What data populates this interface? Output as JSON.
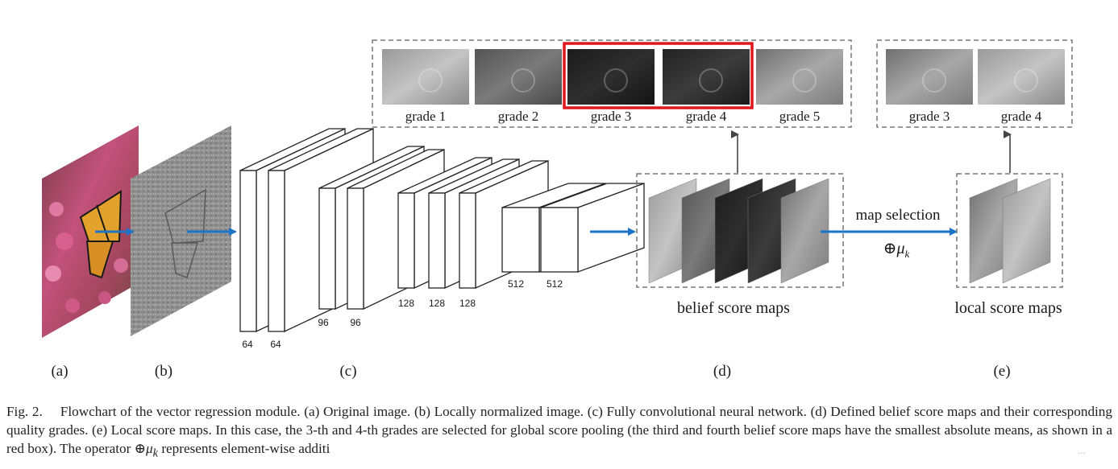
{
  "grades_top": [
    "grade 1",
    "grade 2",
    "grade 3",
    "grade 4",
    "grade 5"
  ],
  "grades_selected": [
    "grade 3",
    "grade 4"
  ],
  "labels": {
    "belief": "belief score maps",
    "local": "local score maps",
    "map_selection": "map selection",
    "operator": "⊕μ",
    "operator_sub": "k"
  },
  "layer_sizes": [
    "64",
    "64",
    "96",
    "96",
    "128",
    "128",
    "128",
    "512",
    "512"
  ],
  "panels": [
    "(a)",
    "(b)",
    "(c)",
    "(d)",
    "(e)"
  ],
  "caption": {
    "fig": "Fig. 2.",
    "text": "Flowchart of the vector regression module. (a) Original image. (b) Locally normalized image. (c) Fully convolutional neural network. (d) Defined belief score maps and their corresponding quality grades. (e) Local score maps. In this case, the 3-th and 4-th grades are selected for global score pooling (the third and fourth belief score maps have the smallest absolute means, as shown in a red box). The operator ",
    "operator": "⊕μ",
    "operator_sub": "k",
    "tail": " represents element-wise additi"
  },
  "watermark": "...",
  "colors": {
    "arrow": "#1d73c4",
    "highlight": "#e0161d",
    "dash": "#777777"
  }
}
